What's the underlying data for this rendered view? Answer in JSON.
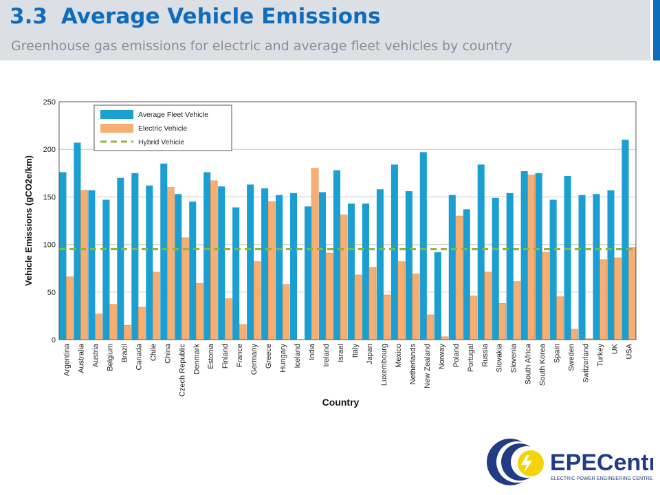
{
  "header": {
    "number": "3.3",
    "title": "Average Vehicle Emissions",
    "subtitle": "Greenhouse gas emissions for electric and average fleet vehicles by country"
  },
  "colors": {
    "accent": "#0f6cbd",
    "fleet": "#1a9fd0",
    "electric": "#f7ae72",
    "hybrid": "#8cb43c"
  },
  "chart_data": {
    "type": "bar",
    "title": "",
    "xlabel": "Country",
    "ylabel": "Vehicle Emissions (gCO2e/km)",
    "ylim": [
      0,
      250
    ],
    "yticks": [
      0,
      50,
      100,
      150,
      200,
      250
    ],
    "grid": true,
    "legend_position": "top-left",
    "categories": [
      "Argentina",
      "Australia",
      "Austria",
      "Belgium",
      "Brazil",
      "Canada",
      "Chile",
      "China",
      "Czech Republic",
      "Denmark",
      "Estonia",
      "Finland",
      "France",
      "Germany",
      "Greece",
      "Hungary",
      "Iceland",
      "India",
      "Ireland",
      "Israel",
      "Italy",
      "Japan",
      "Luxembourg",
      "Mexico",
      "Netherlands",
      "New Zealand",
      "Norway",
      "Poland",
      "Portugal",
      "Russia",
      "Slovakia",
      "Slovenia",
      "South Africa",
      "South Korea",
      "Spain",
      "Sweden",
      "Switzerland",
      "Turkey",
      "UK",
      "USA"
    ],
    "series": [
      {
        "name": "Average Fleet Vehicle",
        "type": "bar",
        "values": [
          176,
          207,
          157,
          147,
          170,
          175,
          162,
          185,
          153,
          145,
          176,
          161,
          139,
          163,
          159,
          152,
          154,
          140,
          155,
          178,
          143,
          143,
          158,
          184,
          156,
          197,
          92,
          152,
          137,
          184,
          149,
          154,
          177,
          175,
          147,
          172,
          152,
          153,
          157,
          210
        ]
      },
      {
        "name": "Electric Vehicle",
        "type": "bar",
        "values": [
          66,
          157,
          27,
          37,
          15,
          34,
          71,
          160,
          107,
          59,
          167,
          43,
          16,
          82,
          145,
          58,
          0,
          180,
          91,
          131,
          68,
          76,
          47,
          82,
          69,
          26,
          3,
          130,
          46,
          71,
          38,
          61,
          173,
          92,
          45,
          11,
          1,
          84,
          86,
          97
        ]
      },
      {
        "name": "Hybrid Vehicle",
        "type": "line",
        "value": 95
      }
    ]
  },
  "logo": {
    "name": "EPECentre",
    "tagline": "ELECTRIC POWER ENGINEERING CENTRE"
  }
}
